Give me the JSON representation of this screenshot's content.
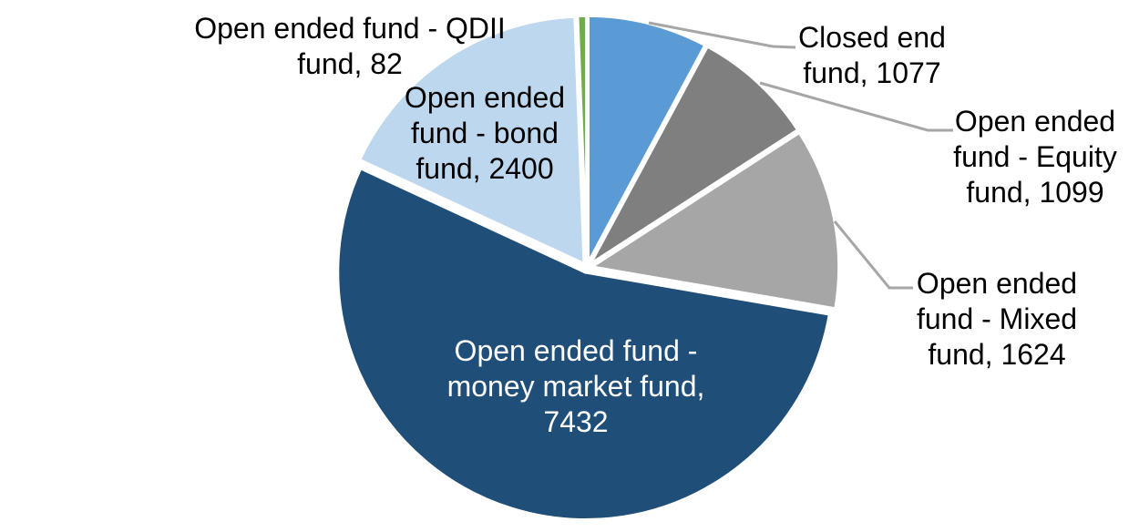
{
  "chart_data": {
    "type": "pie",
    "total": 13714,
    "start_angle_deg": 0,
    "direction": "clockwise",
    "background_color": "#FFFFFF",
    "leader_line_color": "#A6A6A6",
    "slice_border_color": "#FFFFFF",
    "label_text_color": "#000000",
    "inside_label_text_color": "#FFFFFF",
    "legend_position": "none",
    "grid": false,
    "title": "",
    "segments": [
      {
        "name": "Closed end fund",
        "value": 1077,
        "color": "#5B9BD5",
        "label_text": "Closed end fund, 1077",
        "label_lines": [
          "Closed end",
          "fund, 1077"
        ],
        "label_placement": "outside-right",
        "leader_line": true
      },
      {
        "name": "Open ended fund - Equity fund",
        "value": 1099,
        "color": "#7F7F7F",
        "label_text": "Open ended fund - Equity fund, 1099",
        "label_lines": [
          "Open ended",
          "fund - Equity",
          "fund, 1099"
        ],
        "label_placement": "outside-right",
        "leader_line": true
      },
      {
        "name": "Open ended fund - Mixed fund",
        "value": 1624,
        "color": "#A6A6A6",
        "label_text": "Open ended fund - Mixed fund, 1624",
        "label_lines": [
          "Open ended",
          "fund - Mixed",
          "fund, 1624"
        ],
        "label_placement": "outside-right",
        "leader_line": true
      },
      {
        "name": "Open ended fund - money market fund",
        "value": 7432,
        "color": "#1F4E79",
        "label_text": "Open ended fund - money market fund, 7432",
        "label_lines": [
          "Open ended fund -",
          "money market fund,",
          "7432"
        ],
        "label_placement": "inside",
        "leader_line": false
      },
      {
        "name": "Open ended fund - bond fund",
        "value": 2400,
        "color": "#BDD7EE",
        "label_text": "Open ended fund - bond fund, 2400",
        "label_lines": [
          "Open ended",
          "fund - bond",
          "fund, 2400"
        ],
        "label_placement": "over-slice",
        "leader_line": false
      },
      {
        "name": "Open ended fund - QDII fund",
        "value": 82,
        "color": "#70AD47",
        "label_text": "Open ended fund - QDII fund, 82",
        "label_lines": [
          "Open ended fund - QDII",
          "fund, 82"
        ],
        "label_placement": "outside-left",
        "leader_line": false
      }
    ]
  }
}
